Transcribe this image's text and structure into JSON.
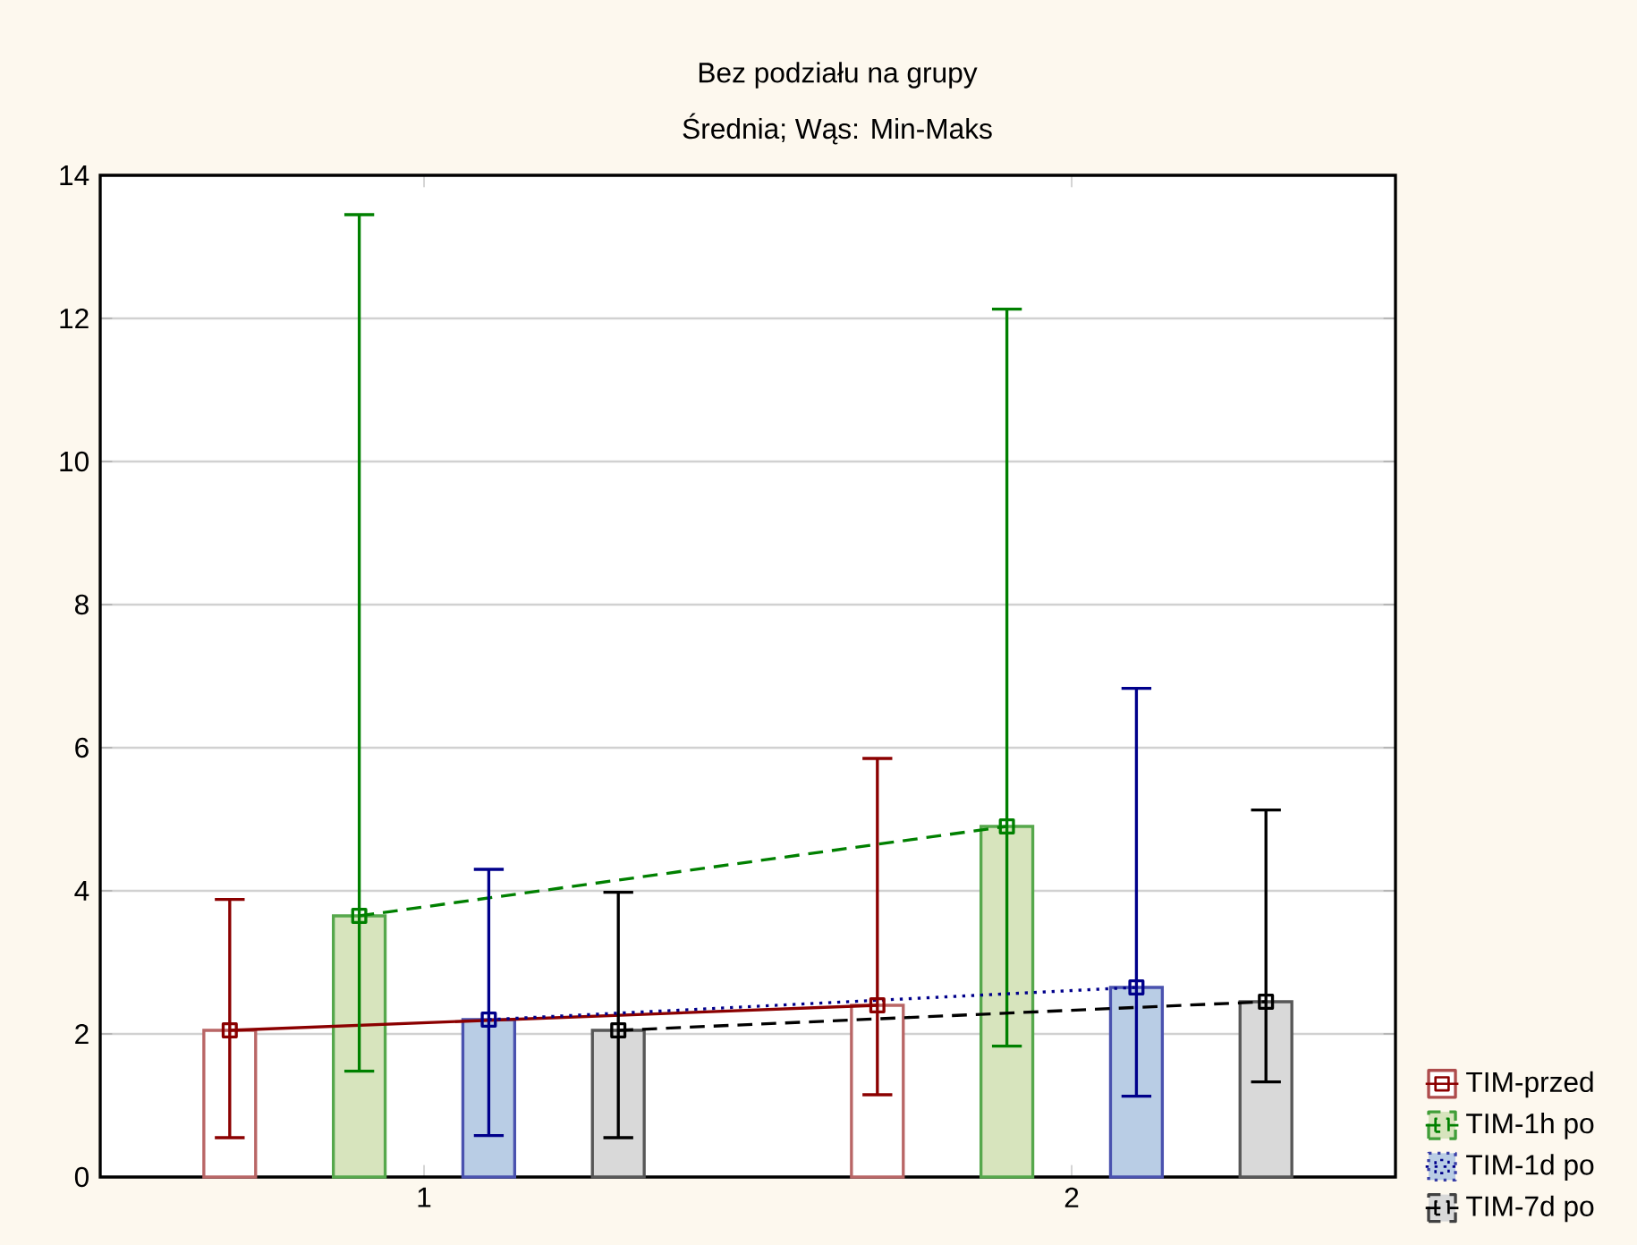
{
  "chart_data": {
    "type": "bar",
    "title": "Bez podziału na grupy",
    "subtitle": "Średnia; Wąs: Min-Maks",
    "categories": [
      "1",
      "2"
    ],
    "ylim": [
      0,
      14
    ],
    "yticks": [
      0,
      2,
      4,
      6,
      8,
      10,
      12,
      14
    ],
    "grid": "y",
    "legend": "bottom right",
    "series": [
      {
        "color": "#ffffff",
        "values": [
          2.05,
          2.4
        ]
      },
      {
        "color": "#d7e4bd",
        "values": [
          3.65,
          4.9
        ]
      },
      {
        "color": "#b9cde5",
        "values": [
          2.2,
          2.65
        ]
      },
      {
        "color": "#d9d9d9",
        "values": [
          2.05,
          2.45
        ]
      },
      {
        "type": "line",
        "name": "TIM-przed",
        "color": "#8b0000",
        "values": [
          2.05,
          2.4
        ],
        "errors": [
          [
            0.55,
            3.88
          ],
          [
            1.15,
            5.85
          ]
        ],
        "line_style": "solid",
        "marker": "square"
      },
      {
        "type": "line",
        "name": "TIM-1h po",
        "color": "#008000",
        "values": [
          3.65,
          4.9
        ],
        "errors": [
          [
            1.48,
            13.45
          ],
          [
            1.83,
            12.13
          ]
        ],
        "line_style": "dashed",
        "marker": "square"
      },
      {
        "type": "line",
        "name": "TIM-1d po",
        "color": "#00008b",
        "values": [
          2.2,
          2.65
        ],
        "errors": [
          [
            0.58,
            4.3
          ],
          [
            1.13,
            6.83
          ]
        ],
        "line_style": "dotted",
        "marker": "square"
      },
      {
        "type": "line",
        "name": "TIM-7d po",
        "color": "#000000",
        "values": [
          2.05,
          2.45
        ],
        "errors": [
          [
            0.55,
            3.98
          ],
          [
            1.33,
            5.13
          ]
        ],
        "line_style": "dashed",
        "marker": "square"
      }
    ]
  }
}
